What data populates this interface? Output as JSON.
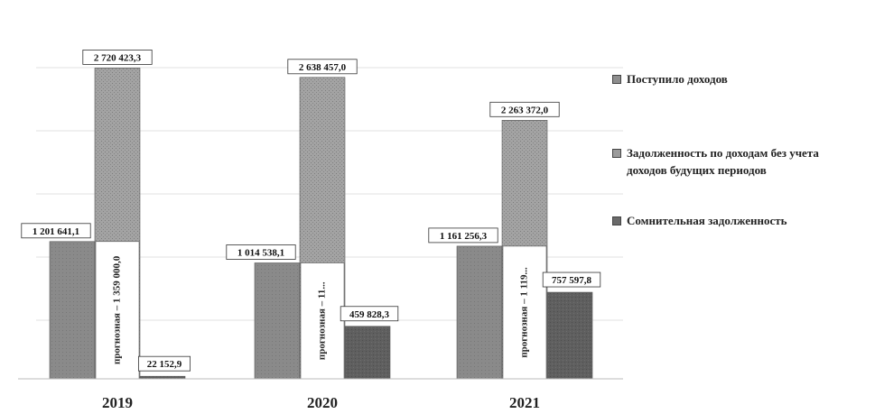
{
  "chart_data": {
    "type": "bar",
    "categories": [
      "2019",
      "2020",
      "2021"
    ],
    "series": [
      {
        "name": "Поступило доходов",
        "values": [
          1201641.1,
          1014538.1,
          1161256.3
        ],
        "labels": [
          "1 201 641,1",
          "1 014 538,1",
          "1 161 256,3"
        ],
        "color": "#8e8e8e"
      },
      {
        "name": "Задолженность по доходам без учета доходов будущих периодов",
        "values": [
          2720423.3,
          2638457.0,
          2263372.0
        ],
        "labels": [
          "2 720 423,3",
          "2 638 457,0",
          "2 263 372,0"
        ],
        "color": "#9b9b9b"
      },
      {
        "name": "Сомнительная задолженность",
        "values": [
          22152.9,
          459828.3,
          757597.8
        ],
        "labels": [
          "22 152,9",
          "459 828,3",
          "757 597,8"
        ],
        "color": "#6a6a6a"
      }
    ],
    "inner_annotations": [
      "прогнозная – 1 359 000,0",
      "прогнозная – 11...",
      "прогнозная – 1 119..."
    ],
    "ylim": [
      0,
      3000000
    ],
    "grid": true,
    "legend_position": "right"
  }
}
